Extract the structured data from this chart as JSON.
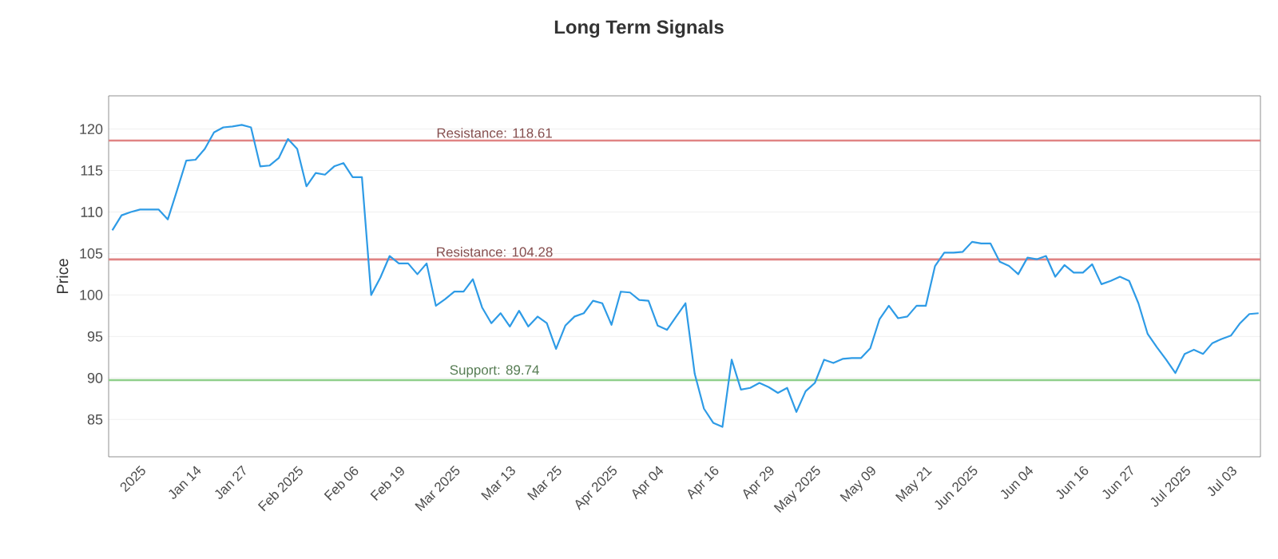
{
  "chart_data": {
    "type": "line",
    "title": "Long Term Signals",
    "ylabel": "Price",
    "categories": [
      null,
      null,
      null,
      "2025",
      null,
      null,
      null,
      null,
      null,
      "Jan 14",
      null,
      null,
      null,
      null,
      "Jan 27",
      null,
      null,
      null,
      null,
      null,
      "Feb 2025",
      null,
      null,
      null,
      null,
      null,
      "Feb 06",
      null,
      null,
      null,
      null,
      "Feb 19",
      null,
      null,
      null,
      null,
      null,
      "Mar 2025",
      null,
      null,
      null,
      null,
      null,
      "Mar 13",
      null,
      null,
      null,
      null,
      "Mar 25",
      null,
      null,
      null,
      null,
      null,
      "Apr 2025",
      null,
      null,
      null,
      null,
      "Apr 04",
      null,
      null,
      null,
      null,
      null,
      "Apr 16",
      null,
      null,
      null,
      null,
      null,
      "Apr 29",
      null,
      null,
      null,
      null,
      "May 2025",
      null,
      null,
      null,
      null,
      null,
      "May 09",
      null,
      null,
      null,
      null,
      null,
      "May 21",
      null,
      null,
      null,
      null,
      "Jun 2025",
      null,
      null,
      null,
      null,
      null,
      "Jun 04",
      null,
      null,
      null,
      null,
      null,
      "Jun 16",
      null,
      null,
      null,
      null,
      "Jun 27",
      null,
      null,
      null,
      null,
      null,
      "Jul 2025",
      null,
      null,
      null,
      null,
      "Jul 03",
      null,
      null,
      null
    ],
    "series": [
      {
        "color": "#2e9be6",
        "values": [
          107.8,
          109.6,
          110.0,
          110.3,
          110.3,
          110.3,
          109.1,
          112.6,
          116.2,
          116.3,
          117.6,
          119.6,
          120.2,
          120.3,
          120.5,
          120.2,
          115.5,
          115.6,
          116.5,
          118.8,
          117.6,
          113.1,
          114.7,
          114.5,
          115.5,
          115.9,
          114.2,
          114.2,
          100.0,
          102.1,
          104.7,
          103.8,
          103.8,
          102.5,
          103.8,
          98.7,
          99.5,
          100.4,
          100.4,
          101.9,
          98.5,
          96.6,
          97.8,
          96.2,
          98.1,
          96.2,
          97.4,
          96.6,
          93.5,
          96.3,
          97.4,
          97.8,
          99.3,
          99.0,
          96.4,
          100.4,
          100.3,
          99.4,
          99.3,
          96.3,
          95.8,
          97.4,
          99.0,
          90.5,
          86.3,
          84.6,
          84.1,
          92.2,
          88.6,
          88.8,
          89.4,
          88.9,
          88.2,
          88.8,
          85.9,
          88.4,
          89.4,
          92.2,
          91.8,
          92.3,
          92.4,
          92.4,
          93.6,
          97.1,
          98.7,
          97.2,
          97.4,
          98.7,
          98.7,
          103.5,
          105.1,
          105.1,
          105.2,
          106.4,
          106.2,
          106.2,
          104.0,
          103.5,
          102.5,
          104.5,
          104.3,
          104.7,
          102.2,
          103.6,
          102.7,
          102.7,
          103.7,
          101.3,
          101.7,
          102.2,
          101.7,
          99.0,
          95.3,
          93.7,
          92.2,
          90.6,
          92.9,
          93.4,
          92.9,
          94.2,
          94.7,
          95.1,
          96.6,
          97.7,
          97.8
        ]
      }
    ],
    "ylim": [
      80.5,
      124
    ],
    "yticks": [
      85,
      90,
      95,
      100,
      105,
      110,
      115,
      120
    ],
    "grid": "y",
    "marker": "none",
    "line_style": "solid",
    "ref_lines": [
      {
        "axis": "y",
        "value": 118.61,
        "label": "Resistance: 118.61",
        "color": "#e08484"
      },
      {
        "axis": "y",
        "value": 104.28,
        "label": "Resistance: 104.28",
        "color": "#e08484"
      },
      {
        "axis": "y",
        "value": 89.74,
        "label": "Support: 89.74",
        "color": "#8fcf8a"
      }
    ]
  }
}
